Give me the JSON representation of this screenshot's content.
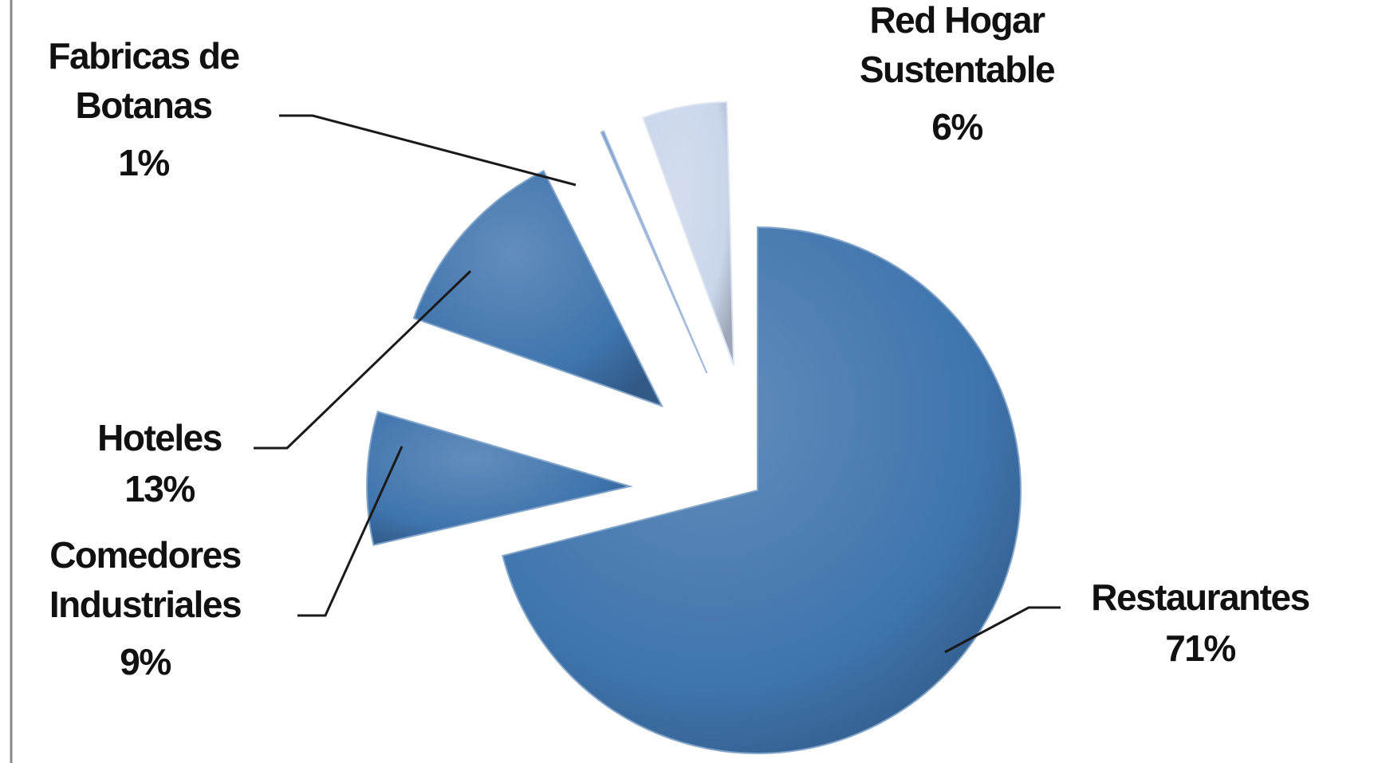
{
  "chart_data": {
    "type": "pie",
    "style": "exploded-3d",
    "legend": "none",
    "slices": [
      {
        "label_lines": [
          "Restaurantes"
        ],
        "label": "Restaurantes",
        "value": 71,
        "value_label": "71%",
        "color": "#3f74ad"
      },
      {
        "label_lines": [
          "Comedores",
          "Industriales"
        ],
        "label": "Comedores Industriales",
        "value": 9,
        "value_label": "9%",
        "color": "#3f74ad"
      },
      {
        "label_lines": [
          "Hoteles"
        ],
        "label": "Hoteles",
        "value": 13,
        "value_label": "13%",
        "color": "#3f74ad"
      },
      {
        "label_lines": [
          "Fabricas de",
          "Botanas"
        ],
        "label": "Fabricas de Botanas",
        "value": 1,
        "value_label": "1%",
        "color": "#6f95c8"
      },
      {
        "label_lines": [
          "Red Hogar",
          "Sustentable"
        ],
        "label": "Red Hogar Sustentable",
        "value": 6,
        "value_label": "6%",
        "color": "#c9d6ea"
      }
    ]
  }
}
